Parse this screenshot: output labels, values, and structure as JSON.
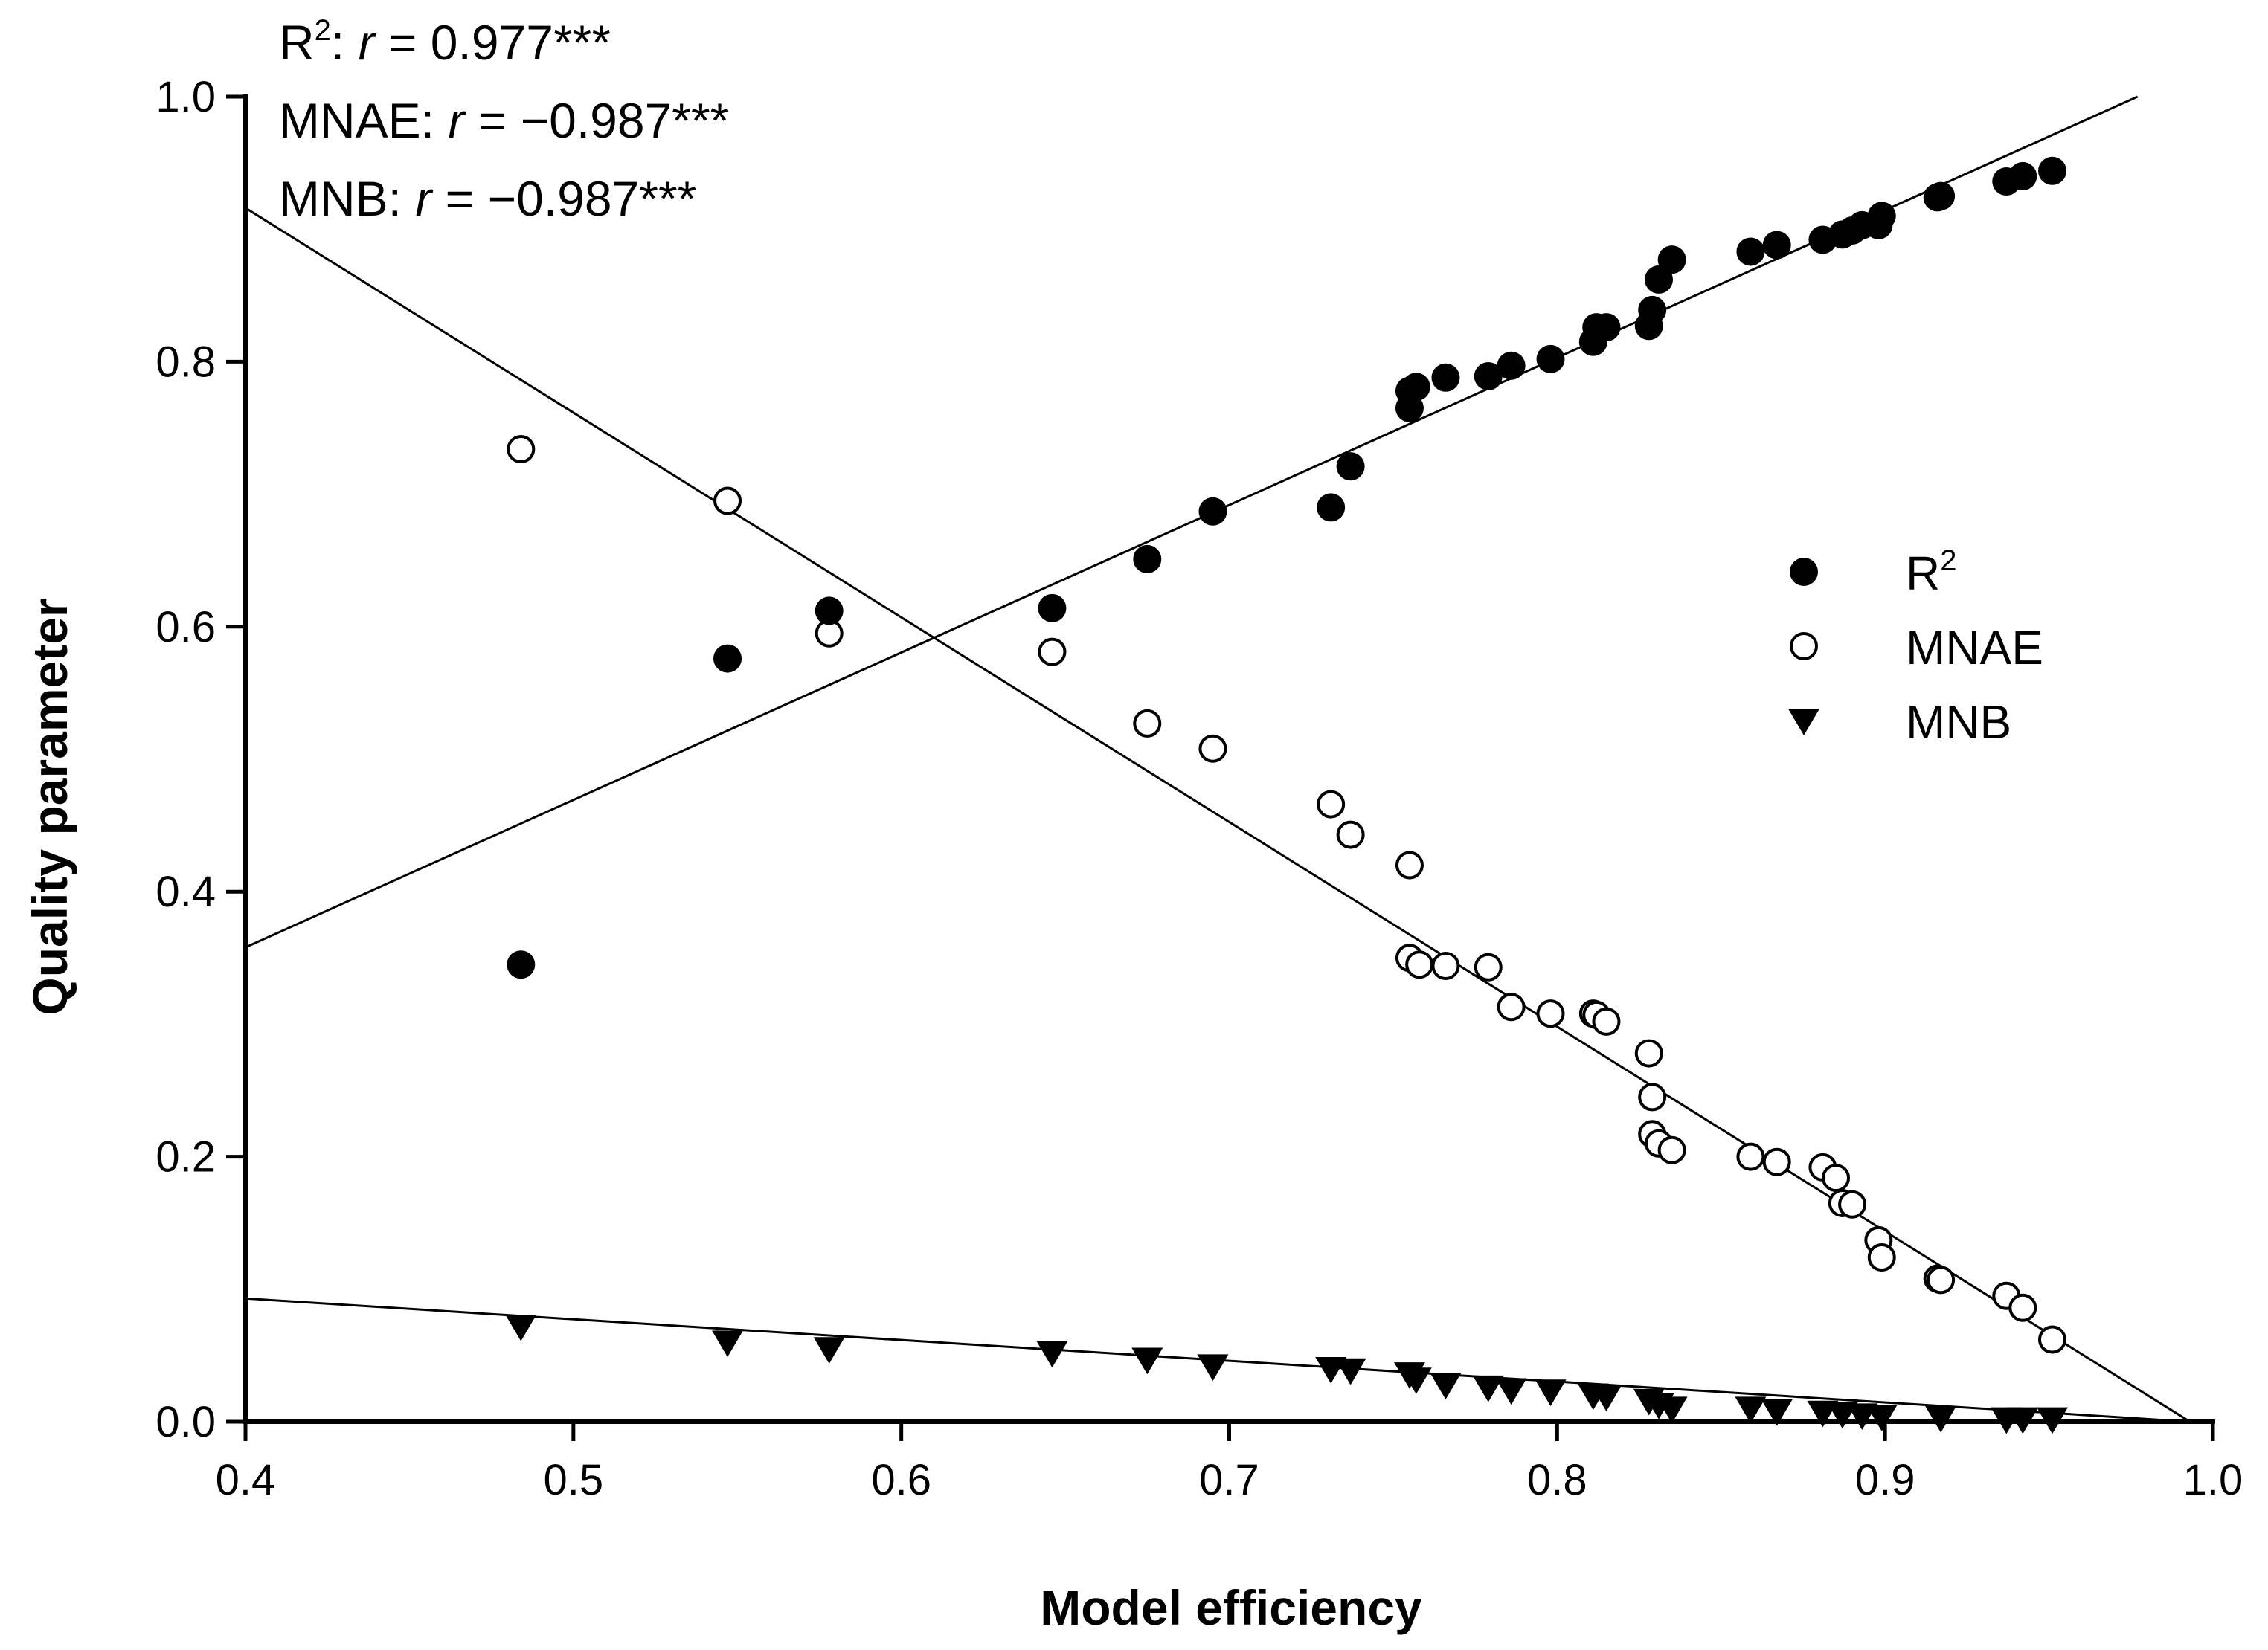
{
  "chart_data": {
    "type": "scatter",
    "title": "",
    "xlabel": "Model efficiency",
    "ylabel": "Quality parameter",
    "xlim": [
      0.4,
      1.0
    ],
    "ylim": [
      0.0,
      1.0
    ],
    "xticks": [
      "0.4",
      "0.5",
      "0.6",
      "0.7",
      "0.8",
      "0.9",
      "1.0"
    ],
    "yticks": [
      "0.0",
      "0.2",
      "0.4",
      "0.6",
      "0.8",
      "1.0"
    ],
    "grid": false,
    "legend_position": "right",
    "annotations": [
      {
        "label": "R",
        "sup": "2",
        "rest": ": ",
        "r": "r",
        "value": " = 0.977***"
      },
      {
        "label": "MNAE",
        "sup": "",
        "rest": ": ",
        "r": "r",
        "value": " = −0.987***"
      },
      {
        "label": "MNB",
        "sup": "",
        "rest": ": ",
        "r": "r",
        "value": " = −0.987***"
      }
    ],
    "series": [
      {
        "name": "R2",
        "legend_label": "R",
        "legend_sup": "2",
        "marker": "filled-circle",
        "x": [
          0.484,
          0.547,
          0.578,
          0.646,
          0.675,
          0.695,
          0.731,
          0.737,
          0.755,
          0.755,
          0.757,
          0.766,
          0.779,
          0.786,
          0.798,
          0.811,
          0.812,
          0.815,
          0.828,
          0.829,
          0.831,
          0.835,
          0.859,
          0.867,
          0.881,
          0.887,
          0.89,
          0.893,
          0.898,
          0.899,
          0.916,
          0.917,
          0.937,
          0.942,
          0.951
        ],
        "y": [
          0.345,
          0.576,
          0.612,
          0.614,
          0.651,
          0.687,
          0.69,
          0.721,
          0.765,
          0.778,
          0.781,
          0.788,
          0.789,
          0.797,
          0.802,
          0.815,
          0.826,
          0.826,
          0.827,
          0.839,
          0.862,
          0.877,
          0.883,
          0.888,
          0.892,
          0.896,
          0.899,
          0.903,
          0.903,
          0.91,
          0.924,
          0.925,
          0.936,
          0.94,
          0.944
        ],
        "fit": {
          "x": [
            0.4,
            0.977
          ],
          "y": [
            0.358,
            1.0
          ]
        }
      },
      {
        "name": "MNAE",
        "legend_label": "MNAE",
        "marker": "open-circle",
        "x": [
          0.484,
          0.547,
          0.578,
          0.646,
          0.675,
          0.695,
          0.731,
          0.737,
          0.755,
          0.755,
          0.758,
          0.766,
          0.779,
          0.786,
          0.798,
          0.811,
          0.812,
          0.815,
          0.828,
          0.829,
          0.829,
          0.831,
          0.835,
          0.859,
          0.867,
          0.881,
          0.885,
          0.887,
          0.89,
          0.898,
          0.899,
          0.916,
          0.917,
          0.937,
          0.942,
          0.951
        ],
        "y": [
          0.734,
          0.695,
          0.595,
          0.581,
          0.527,
          0.508,
          0.466,
          0.443,
          0.42,
          0.35,
          0.345,
          0.344,
          0.343,
          0.313,
          0.308,
          0.308,
          0.307,
          0.302,
          0.278,
          0.245,
          0.217,
          0.21,
          0.205,
          0.2,
          0.196,
          0.192,
          0.184,
          0.165,
          0.164,
          0.137,
          0.124,
          0.108,
          0.107,
          0.095,
          0.086,
          0.062
        ],
        "fit": {
          "x": [
            0.4,
            0.993
          ],
          "y": [
            0.916,
            0.0
          ]
        }
      },
      {
        "name": "MNB",
        "legend_label": "MNB",
        "marker": "filled-triangle-down",
        "x": [
          0.484,
          0.547,
          0.578,
          0.646,
          0.675,
          0.695,
          0.731,
          0.737,
          0.755,
          0.757,
          0.766,
          0.779,
          0.786,
          0.798,
          0.811,
          0.815,
          0.828,
          0.831,
          0.835,
          0.859,
          0.867,
          0.881,
          0.887,
          0.893,
          0.899,
          0.917,
          0.937,
          0.942,
          0.951
        ],
        "y": [
          0.072,
          0.06,
          0.055,
          0.052,
          0.047,
          0.042,
          0.04,
          0.039,
          0.036,
          0.032,
          0.028,
          0.026,
          0.024,
          0.023,
          0.02,
          0.019,
          0.016,
          0.013,
          0.01,
          0.01,
          0.008,
          0.007,
          0.006,
          0.005,
          0.004,
          0.003,
          0.002,
          0.002,
          0.002
        ],
        "fit": {
          "x": [
            0.4,
            0.993
          ],
          "y": [
            0.093,
            0.0
          ]
        }
      }
    ]
  }
}
